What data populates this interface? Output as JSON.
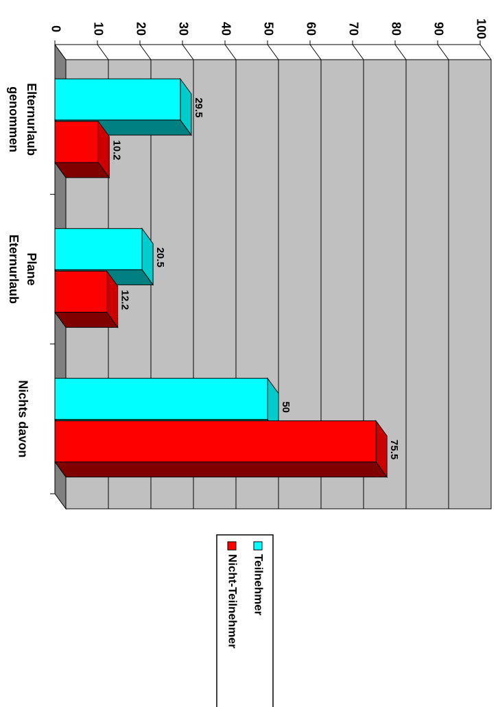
{
  "chart_data": {
    "type": "bar3d",
    "categories": [
      "Elternurlaub\ngenommen",
      "Plane\nEternurlaub",
      "Nichts davon"
    ],
    "series": [
      {
        "name": "Teilnehmer",
        "color": "#00ffff",
        "values": [
          29.5,
          20.5,
          50
        ]
      },
      {
        "name": "Nicht-Teilnehmer",
        "color": "#ff0000",
        "values": [
          10.2,
          12.2,
          75.5
        ]
      }
    ],
    "ylim": [
      0,
      100
    ],
    "yticks": [
      0,
      10,
      20,
      30,
      40,
      50,
      60,
      70,
      80,
      90,
      100
    ],
    "grid": true
  }
}
